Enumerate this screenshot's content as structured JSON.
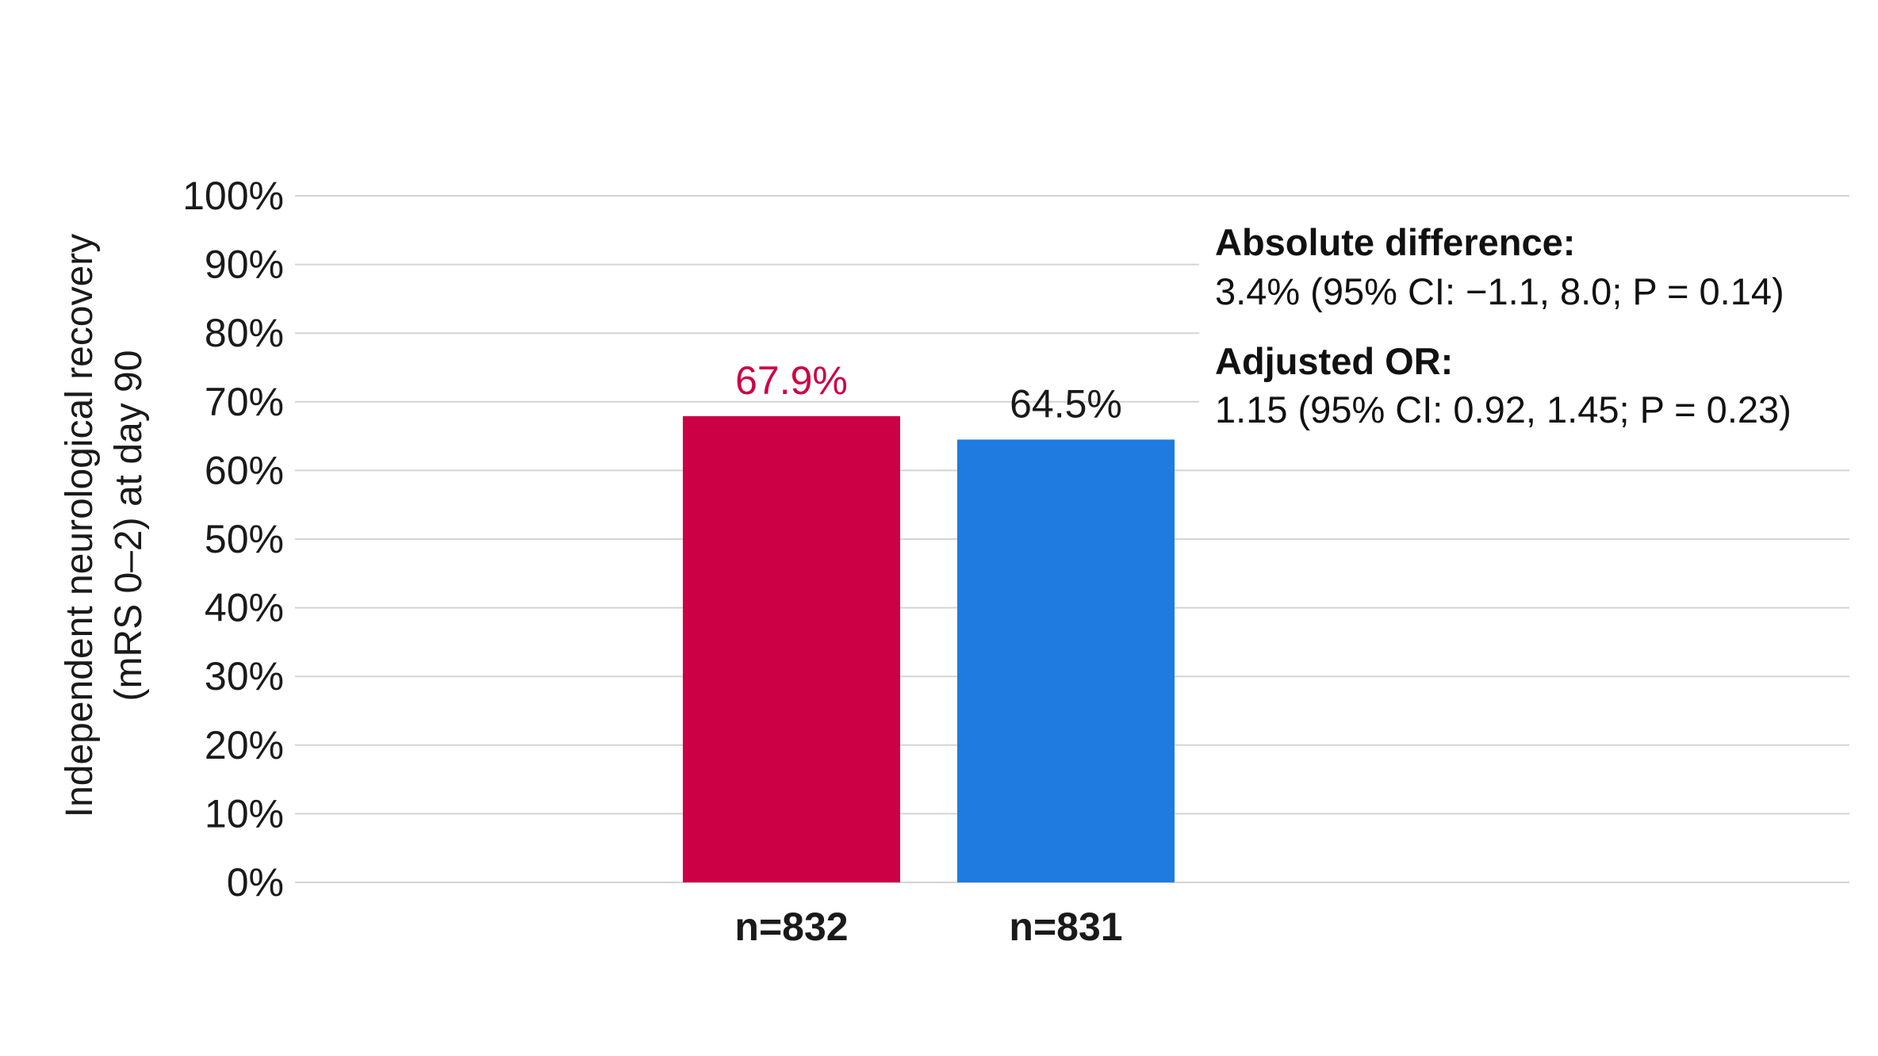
{
  "chart_data": {
    "type": "bar",
    "ylabel_lines": [
      "Independent neurological recovery",
      "(mRS 0–2) at day 90"
    ],
    "ylim": [
      0,
      100
    ],
    "yticks": [
      "0%",
      "10%",
      "20%",
      "30%",
      "40%",
      "50%",
      "60%",
      "70%",
      "80%",
      "90%",
      "100%"
    ],
    "grid": true,
    "categories": [
      "n=832",
      "n=831"
    ],
    "values": [
      67.9,
      64.5
    ],
    "data_labels": [
      "67.9%",
      "64.5%"
    ],
    "bar_colors": [
      "#CC0044",
      "#1F7BE0"
    ],
    "label_colors": [
      "#CC0044",
      "#1a1a1a"
    ],
    "annotation": {
      "abs_diff_title": "Absolute difference:",
      "abs_diff_text": "3.4% (95% CI: −1.1, 8.0; P = 0.14)",
      "or_title": "Adjusted OR:",
      "or_text": "1.15 (95% CI: 0.92, 1.45; P = 0.23)"
    }
  }
}
